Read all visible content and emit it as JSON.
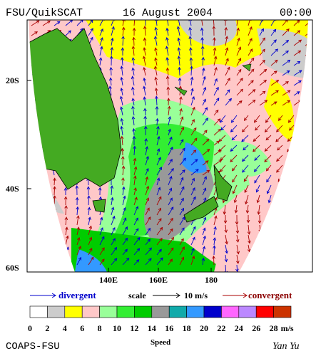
{
  "header": {
    "product": "FSU/QuikSCAT",
    "date": "16 August 2004",
    "time": "00:00"
  },
  "map": {
    "lat_labels": [
      "20S",
      "40S",
      "60S"
    ],
    "lon_labels": [
      "140E",
      "160E",
      "180"
    ]
  },
  "legend": {
    "divergent": "divergent",
    "scale": "scale",
    "scale_value": "10 m/s",
    "convergent": "convergent"
  },
  "colorbar": {
    "colors": [
      "#ffffff",
      "#cccccc",
      "#ffff00",
      "#ffc8c8",
      "#99ff99",
      "#33ee33",
      "#00cc00",
      "#999999",
      "#11aaaa",
      "#3399ff",
      "#0000cc",
      "#ff66ff",
      "#bb88ff",
      "#ff0000",
      "#cc3300",
      "#000000"
    ],
    "ticks": [
      0,
      2,
      4,
      6,
      8,
      10,
      12,
      14,
      16,
      18,
      20,
      22,
      24,
      26,
      28
    ],
    "unit": "m/s",
    "label": "Speed"
  },
  "footer": {
    "left": "COAPS-FSU",
    "right": "Yan Yu"
  }
}
